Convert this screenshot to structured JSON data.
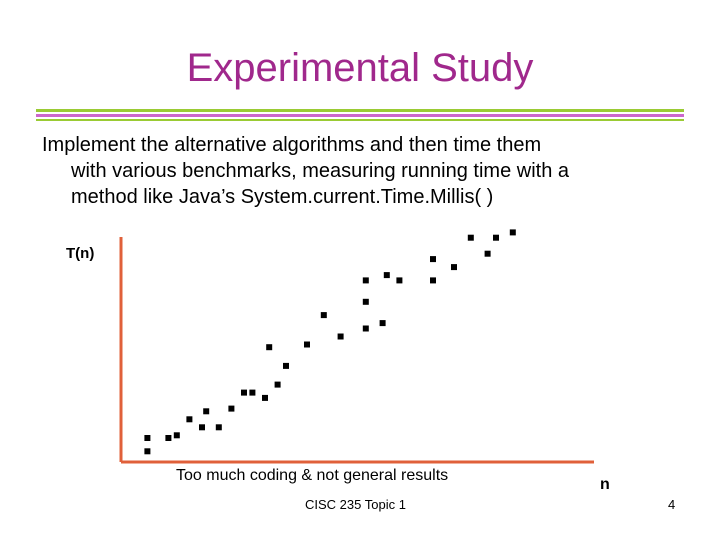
{
  "title": "Experimental Study",
  "body": {
    "line1": "Implement the alternative algorithms and then time them",
    "line2": "with various benchmarks, measuring running time with a",
    "line3": "method like Java’s System.current.Time.Millis( )"
  },
  "colors": {
    "title": "#a0288c",
    "rule_green": "#9acb34",
    "rule_pink": "#cc66cc",
    "axis": "#e0603a",
    "points": "#000000"
  },
  "chart_data": {
    "type": "scatter",
    "title": "",
    "xlabel": "n",
    "ylabel": "T(n)",
    "xlim": [
      0,
      100
    ],
    "ylim": [
      0,
      100
    ],
    "grid": false,
    "ticks": false,
    "series": [
      {
        "points": [
          [
            7,
            12
          ],
          [
            7,
            7
          ],
          [
            12,
            12
          ],
          [
            14,
            13
          ],
          [
            17,
            19
          ],
          [
            20,
            16
          ],
          [
            21,
            22
          ],
          [
            24,
            16
          ],
          [
            27,
            23
          ],
          [
            30,
            29
          ],
          [
            32,
            29
          ],
          [
            35,
            27
          ],
          [
            36,
            46
          ],
          [
            38,
            32
          ],
          [
            40,
            39
          ],
          [
            45,
            47
          ],
          [
            49,
            58
          ],
          [
            53,
            50
          ],
          [
            59,
            53
          ],
          [
            59,
            63
          ],
          [
            59,
            71
          ],
          [
            63,
            55
          ],
          [
            64,
            73
          ],
          [
            67,
            71
          ],
          [
            75,
            79
          ],
          [
            75,
            71
          ],
          [
            80,
            76
          ],
          [
            84,
            87
          ],
          [
            88,
            81
          ],
          [
            90,
            87
          ],
          [
            94,
            89
          ]
        ]
      }
    ],
    "caption": "Too much coding & not general results"
  },
  "footer": {
    "course": "CISC 235 Topic 1",
    "page": "4"
  }
}
